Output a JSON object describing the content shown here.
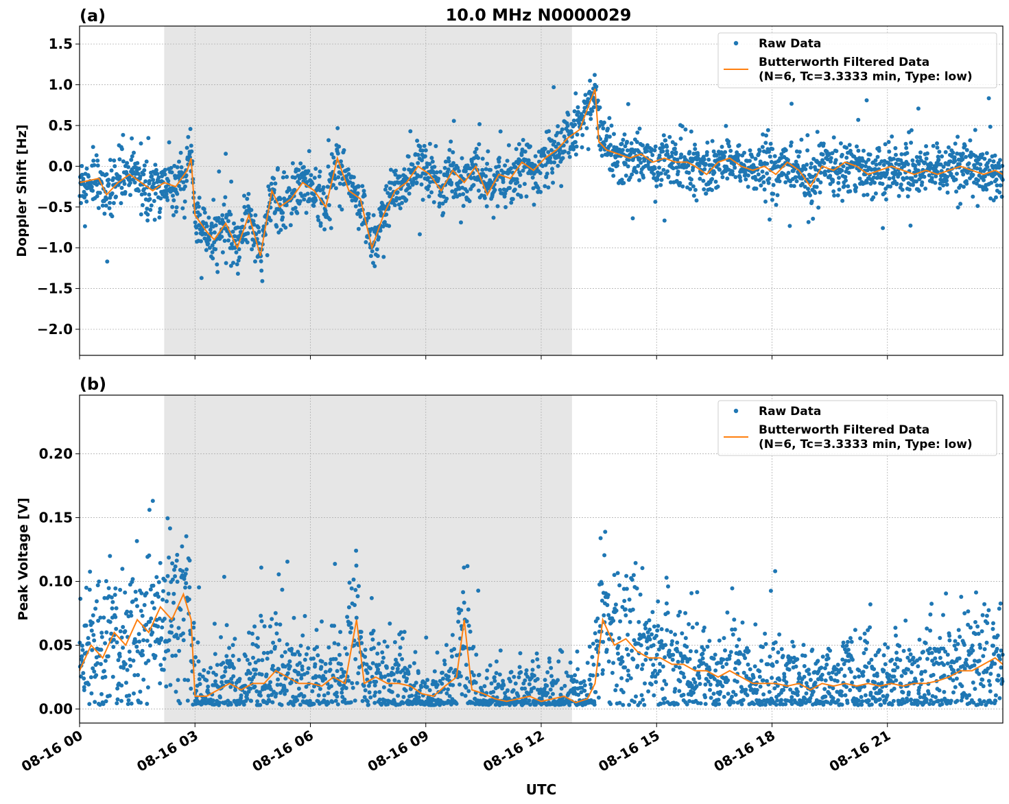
{
  "figure": {
    "title": "10.0 MHz N0000029",
    "xlabel": "UTC",
    "x_ticks": [
      "08-16 00",
      "08-16 03",
      "08-16 06",
      "08-16 09",
      "08-16 12",
      "08-16 15",
      "08-16 18",
      "08-16 21"
    ],
    "shaded_interval_hours": [
      2.2,
      12.8
    ],
    "colors": {
      "raw": "#1f77b4",
      "filtered": "#ff7f0e",
      "shade": "#e6e6e6",
      "grid": "#b0b0b0"
    }
  },
  "chart_data": [
    {
      "type": "scatter",
      "panel_label": "(a)",
      "ylabel": "Doppler Shift [Hz]",
      "xlim_hours": [
        0,
        24
      ],
      "ylim": [
        -2.32,
        1.72
      ],
      "y_ticks": [
        "1.5",
        "1.0",
        "0.5",
        "0.0",
        "−0.5",
        "−1.0",
        "−1.5",
        "−2.0"
      ],
      "y_tick_values": [
        1.5,
        1.0,
        0.5,
        0.0,
        -0.5,
        -1.0,
        -1.5,
        -2.0
      ],
      "grid": true,
      "legend_placement": "top-right",
      "legend": {
        "raw": "Raw Data",
        "filtered_line1": "Butterworth Filtered Data",
        "filtered_line2": "(N=6, Tc=3.3333 min, Type: low)"
      },
      "filtered_series": {
        "name": "Butterworth Filtered Data",
        "x_hours": [
          0,
          0.5,
          0.7,
          1.0,
          1.3,
          1.6,
          1.9,
          2.2,
          2.5,
          2.8,
          2.9,
          3.0,
          3.3,
          3.5,
          3.8,
          4.1,
          4.4,
          4.7,
          5.0,
          5.2,
          5.5,
          5.8,
          6.1,
          6.4,
          6.7,
          7.0,
          7.3,
          7.6,
          7.9,
          8.2,
          8.5,
          8.8,
          9.1,
          9.4,
          9.7,
          10.0,
          10.3,
          10.6,
          10.9,
          11.2,
          11.5,
          11.8,
          12.1,
          12.4,
          12.7,
          13.0,
          13.2,
          13.4,
          13.5,
          13.7,
          14.0,
          14.3,
          14.6,
          14.9,
          15.2,
          15.5,
          15.8,
          16.0,
          16.3,
          16.6,
          16.9,
          17.2,
          17.5,
          17.8,
          18.1,
          18.4,
          18.7,
          19.0,
          19.3,
          19.6,
          19.9,
          20.2,
          20.5,
          20.8,
          21.1,
          21.4,
          21.7,
          22.0,
          22.3,
          22.6,
          22.9,
          23.2,
          23.5,
          23.8,
          24.0
        ],
        "y": [
          -0.2,
          -0.15,
          -0.35,
          -0.2,
          -0.1,
          -0.2,
          -0.3,
          -0.2,
          -0.25,
          -0.05,
          0.1,
          -0.6,
          -0.8,
          -0.9,
          -0.7,
          -1.0,
          -0.6,
          -1.1,
          -0.3,
          -0.5,
          -0.4,
          -0.2,
          -0.3,
          -0.5,
          0.1,
          -0.3,
          -0.4,
          -1.0,
          -0.6,
          -0.3,
          -0.2,
          0.0,
          -0.1,
          -0.3,
          -0.05,
          -0.2,
          0.0,
          -0.35,
          -0.1,
          -0.15,
          0.05,
          -0.05,
          0.1,
          0.2,
          0.35,
          0.45,
          0.7,
          0.95,
          0.3,
          0.2,
          0.15,
          0.1,
          0.15,
          0.05,
          0.1,
          0.05,
          0.05,
          0.0,
          -0.1,
          0.05,
          0.1,
          0.0,
          -0.05,
          0.0,
          -0.1,
          0.05,
          -0.05,
          -0.25,
          0.0,
          -0.05,
          0.05,
          0.0,
          -0.1,
          -0.05,
          0.0,
          -0.05,
          -0.1,
          -0.05,
          -0.1,
          -0.05,
          0.0,
          -0.05,
          -0.1,
          -0.05,
          -0.1
        ]
      }
    },
    {
      "type": "scatter",
      "panel_label": "(b)",
      "ylabel": "Peak Voltage [V]",
      "xlim_hours": [
        0,
        24
      ],
      "ylim": [
        -0.011,
        0.246
      ],
      "y_ticks": [
        "0.20",
        "0.15",
        "0.10",
        "0.05",
        "0.00"
      ],
      "y_tick_values": [
        0.2,
        0.15,
        0.1,
        0.05,
        0.0
      ],
      "grid": true,
      "legend_placement": "top-right",
      "legend": {
        "raw": "Raw Data",
        "filtered_line1": "Butterworth Filtered Data",
        "filtered_line2": "(N=6, Tc=3.3333 min, Type: low)"
      },
      "filtered_series": {
        "name": "Butterworth Filtered Data",
        "x_hours": [
          0,
          0.3,
          0.6,
          0.9,
          1.2,
          1.5,
          1.8,
          2.1,
          2.4,
          2.7,
          2.9,
          3.0,
          3.3,
          3.6,
          3.9,
          4.2,
          4.5,
          4.8,
          5.1,
          5.4,
          5.7,
          6.0,
          6.3,
          6.6,
          6.9,
          7.2,
          7.4,
          7.7,
          8.0,
          8.3,
          8.6,
          8.9,
          9.2,
          9.5,
          9.8,
          10.0,
          10.2,
          10.5,
          10.8,
          11.1,
          11.4,
          11.7,
          12.0,
          12.3,
          12.6,
          12.9,
          13.2,
          13.4,
          13.6,
          13.9,
          14.2,
          14.5,
          14.8,
          15.1,
          15.4,
          15.7,
          16.0,
          16.3,
          16.6,
          16.9,
          17.2,
          17.5,
          17.8,
          18.1,
          18.4,
          18.7,
          19.0,
          19.3,
          19.6,
          19.9,
          20.2,
          20.5,
          20.8,
          21.1,
          21.4,
          21.7,
          22.0,
          22.3,
          22.6,
          22.9,
          23.2,
          23.5,
          23.8,
          24.0
        ],
        "y": [
          0.03,
          0.05,
          0.04,
          0.06,
          0.05,
          0.07,
          0.06,
          0.08,
          0.07,
          0.09,
          0.07,
          0.01,
          0.01,
          0.015,
          0.02,
          0.015,
          0.02,
          0.02,
          0.03,
          0.025,
          0.02,
          0.02,
          0.018,
          0.025,
          0.02,
          0.07,
          0.02,
          0.025,
          0.02,
          0.02,
          0.018,
          0.012,
          0.01,
          0.018,
          0.025,
          0.07,
          0.015,
          0.012,
          0.008,
          0.006,
          0.008,
          0.01,
          0.006,
          0.008,
          0.01,
          0.005,
          0.008,
          0.02,
          0.07,
          0.05,
          0.055,
          0.045,
          0.04,
          0.04,
          0.035,
          0.035,
          0.03,
          0.03,
          0.025,
          0.03,
          0.025,
          0.02,
          0.02,
          0.02,
          0.018,
          0.02,
          0.015,
          0.02,
          0.018,
          0.02,
          0.018,
          0.02,
          0.018,
          0.02,
          0.018,
          0.02,
          0.02,
          0.022,
          0.025,
          0.03,
          0.03,
          0.035,
          0.04,
          0.035
        ]
      }
    }
  ]
}
